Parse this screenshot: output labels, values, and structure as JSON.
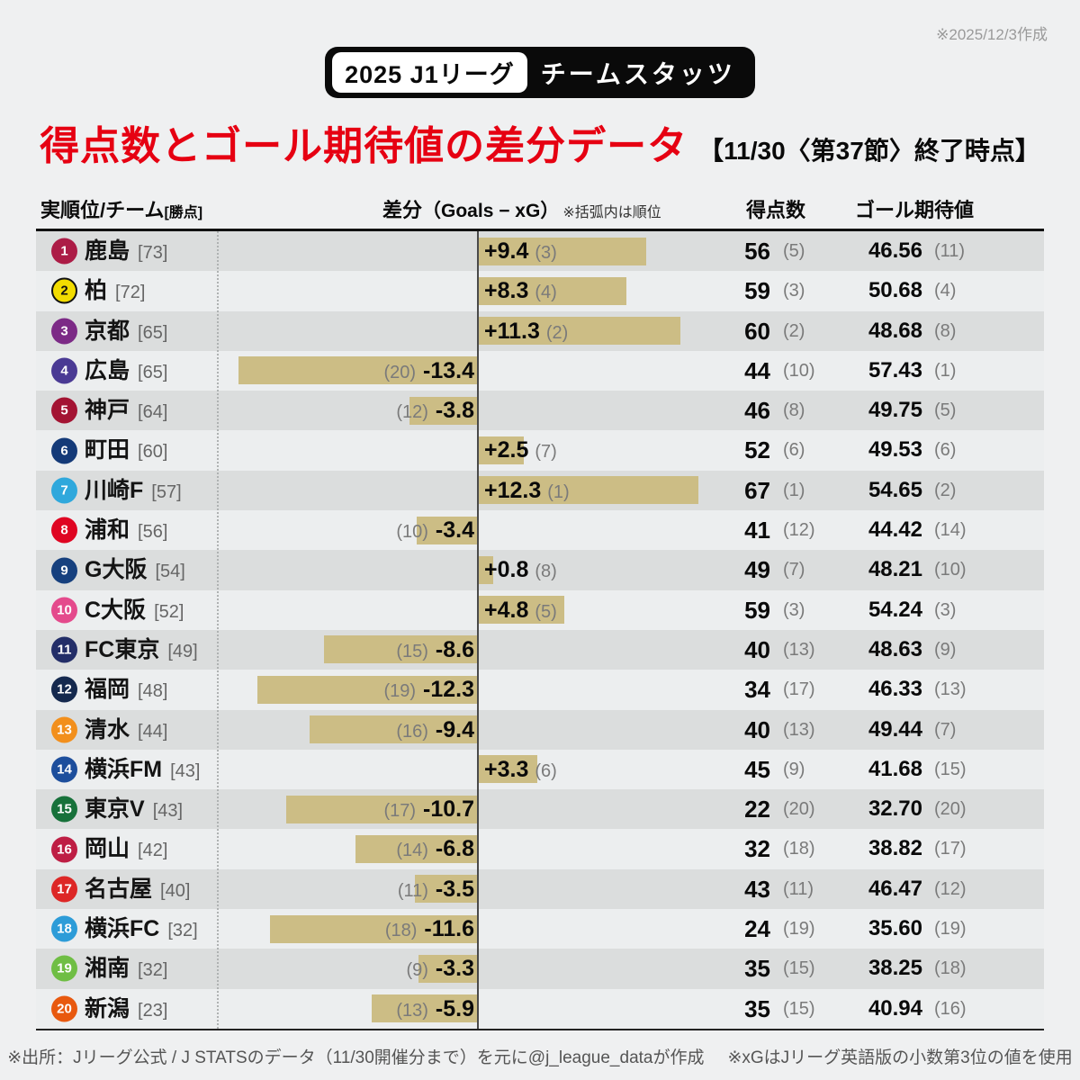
{
  "meta": {
    "created_note": "※2025/12/3作成"
  },
  "banner": {
    "league": "2025 J1リーグ",
    "label": "チームスタッツ"
  },
  "title": {
    "main": "得点数とゴール期待値の差分データ",
    "sub": "【11/30〈第37節〉終了時点】"
  },
  "table_headers": {
    "team": "実順位/チーム",
    "team_sub": "[勝点]",
    "diff": "差分",
    "diff_formula": "（Goals − xG）",
    "diff_note": "※括弧内は順位",
    "goals": "得点数",
    "xg": "ゴール期待値"
  },
  "footer": {
    "source": "※出所：Jリーグ公式 / J STATSのデータ（11/30開催分まで）を元に@j_league_dataが作成",
    "xg_note": "※xGはJリーグ英語版の小数第3位の値を使用"
  },
  "chart_data": {
    "type": "bar",
    "orientation": "horizontal",
    "title": "得点数とゴール期待値の差分データ（2025 J1リーグ チームスタッツ）",
    "value_axis": "差分（Goals − xG）",
    "value_range_approx": [
      -13.4,
      12.3
    ],
    "bar_color": "#CCBD85",
    "note": "括弧内は順位",
    "teams": [
      {
        "rank": 1,
        "name": "鹿島",
        "points": 73,
        "points_label": "[73]",
        "badge_color": "#AC1C46",
        "badge_text_color": "#FFFFFF",
        "diff": 9.4,
        "diff_label": "+9.4",
        "diff_rank": 3,
        "diff_rank_label": "(3)",
        "goals": 56,
        "goals_rank": 5,
        "goals_rank_label": "(5)",
        "xg": "46.56",
        "xg_rank": 11,
        "xg_rank_label": "(11)"
      },
      {
        "rank": 2,
        "name": "柏",
        "points": 72,
        "points_label": "[72]",
        "badge_color": "#F2DC00",
        "badge_text_color": "#111111",
        "badge_border": "#111111",
        "diff": 8.3,
        "diff_label": "+8.3",
        "diff_rank": 4,
        "diff_rank_label": "(4)",
        "goals": 59,
        "goals_rank": 3,
        "goals_rank_label": "(3)",
        "xg": "50.68",
        "xg_rank": 4,
        "xg_rank_label": "(4)"
      },
      {
        "rank": 3,
        "name": "京都",
        "points": 65,
        "points_label": "[65]",
        "badge_color": "#7C2A86",
        "badge_text_color": "#FFFFFF",
        "diff": 11.3,
        "diff_label": "+11.3",
        "diff_rank": 2,
        "diff_rank_label": "(2)",
        "goals": 60,
        "goals_rank": 2,
        "goals_rank_label": "(2)",
        "xg": "48.68",
        "xg_rank": 8,
        "xg_rank_label": "(8)"
      },
      {
        "rank": 4,
        "name": "広島",
        "points": 65,
        "points_label": "[65]",
        "badge_color": "#4A3A94",
        "badge_text_color": "#FFFFFF",
        "diff": -13.4,
        "diff_label": "-13.4",
        "diff_rank": 20,
        "diff_rank_label": "(20)",
        "goals": 44,
        "goals_rank": 10,
        "goals_rank_label": "(10)",
        "xg": "57.43",
        "xg_rank": 1,
        "xg_rank_label": "(1)"
      },
      {
        "rank": 5,
        "name": "神戸",
        "points": 64,
        "points_label": "[64]",
        "badge_color": "#A31332",
        "badge_text_color": "#FFFFFF",
        "diff": -3.8,
        "diff_label": "-3.8",
        "diff_rank": 12,
        "diff_rank_label": "(12)",
        "goals": 46,
        "goals_rank": 8,
        "goals_rank_label": "(8)",
        "xg": "49.75",
        "xg_rank": 5,
        "xg_rank_label": "(5)"
      },
      {
        "rank": 6,
        "name": "町田",
        "points": 60,
        "points_label": "[60]",
        "badge_color": "#143A78",
        "badge_text_color": "#FFFFFF",
        "diff": 2.5,
        "diff_label": "+2.5",
        "diff_rank": 7,
        "diff_rank_label": "(7)",
        "goals": 52,
        "goals_rank": 6,
        "goals_rank_label": "(6)",
        "xg": "49.53",
        "xg_rank": 6,
        "xg_rank_label": "(6)"
      },
      {
        "rank": 7,
        "name": "川崎F",
        "points": 57,
        "points_label": "[57]",
        "badge_color": "#2FA8DC",
        "badge_text_color": "#FFFFFF",
        "diff": 12.3,
        "diff_label": "+12.3",
        "diff_rank": 1,
        "diff_rank_label": "(1)",
        "goals": 67,
        "goals_rank": 1,
        "goals_rank_label": "(1)",
        "xg": "54.65",
        "xg_rank": 2,
        "xg_rank_label": "(2)"
      },
      {
        "rank": 8,
        "name": "浦和",
        "points": 56,
        "points_label": "[56]",
        "badge_color": "#DF0522",
        "badge_text_color": "#FFFFFF",
        "diff": -3.4,
        "diff_label": "-3.4",
        "diff_rank": 10,
        "diff_rank_label": "(10)",
        "goals": 41,
        "goals_rank": 12,
        "goals_rank_label": "(12)",
        "xg": "44.42",
        "xg_rank": 14,
        "xg_rank_label": "(14)"
      },
      {
        "rank": 9,
        "name": "G大阪",
        "points": 54,
        "points_label": "[54]",
        "badge_color": "#16407E",
        "badge_text_color": "#FFFFFF",
        "diff": 0.8,
        "diff_label": "+0.8",
        "diff_rank": 8,
        "diff_rank_label": "(8)",
        "goals": 49,
        "goals_rank": 7,
        "goals_rank_label": "(7)",
        "xg": "48.21",
        "xg_rank": 10,
        "xg_rank_label": "(10)"
      },
      {
        "rank": 10,
        "name": "C大阪",
        "points": 52,
        "points_label": "[52]",
        "badge_color": "#E44A8C",
        "badge_text_color": "#FFFFFF",
        "diff": 4.8,
        "diff_label": "+4.8",
        "diff_rank": 5,
        "diff_rank_label": "(5)",
        "goals": 59,
        "goals_rank": 3,
        "goals_rank_label": "(3)",
        "xg": "54.24",
        "xg_rank": 3,
        "xg_rank_label": "(3)"
      },
      {
        "rank": 11,
        "name": "FC東京",
        "points": 49,
        "points_label": "[49]",
        "badge_color": "#232E68",
        "badge_text_color": "#FFFFFF",
        "diff": -8.6,
        "diff_label": "-8.6",
        "diff_rank": 15,
        "diff_rank_label": "(15)",
        "goals": 40,
        "goals_rank": 13,
        "goals_rank_label": "(13)",
        "xg": "48.63",
        "xg_rank": 9,
        "xg_rank_label": "(9)"
      },
      {
        "rank": 12,
        "name": "福岡",
        "points": 48,
        "points_label": "[48]",
        "badge_color": "#15294E",
        "badge_text_color": "#FFFFFF",
        "diff": -12.3,
        "diff_label": "-12.3",
        "diff_rank": 19,
        "diff_rank_label": "(19)",
        "goals": 34,
        "goals_rank": 17,
        "goals_rank_label": "(17)",
        "xg": "46.33",
        "xg_rank": 13,
        "xg_rank_label": "(13)"
      },
      {
        "rank": 13,
        "name": "清水",
        "points": 44,
        "points_label": "[44]",
        "badge_color": "#F28F1C",
        "badge_text_color": "#FFFFFF",
        "diff": -9.4,
        "diff_label": "-9.4",
        "diff_rank": 16,
        "diff_rank_label": "(16)",
        "goals": 40,
        "goals_rank": 13,
        "goals_rank_label": "(13)",
        "xg": "49.44",
        "xg_rank": 7,
        "xg_rank_label": "(7)"
      },
      {
        "rank": 14,
        "name": "横浜FM",
        "points": 43,
        "points_label": "[43]",
        "badge_color": "#1D4E9C",
        "badge_text_color": "#FFFFFF",
        "diff": 3.3,
        "diff_label": "+3.3",
        "diff_rank": 6,
        "diff_rank_label": "(6)",
        "goals": 45,
        "goals_rank": 9,
        "goals_rank_label": "(9)",
        "xg": "41.68",
        "xg_rank": 15,
        "xg_rank_label": "(15)"
      },
      {
        "rank": 15,
        "name": "東京V",
        "points": 43,
        "points_label": "[43]",
        "badge_color": "#17713A",
        "badge_text_color": "#FFFFFF",
        "diff": -10.7,
        "diff_label": "-10.7",
        "diff_rank": 17,
        "diff_rank_label": "(17)",
        "goals": 22,
        "goals_rank": 20,
        "goals_rank_label": "(20)",
        "xg": "32.70",
        "xg_rank": 20,
        "xg_rank_label": "(20)"
      },
      {
        "rank": 16,
        "name": "岡山",
        "points": 42,
        "points_label": "[42]",
        "badge_color": "#BE1E44",
        "badge_text_color": "#FFFFFF",
        "diff": -6.8,
        "diff_label": "-6.8",
        "diff_rank": 14,
        "diff_rank_label": "(14)",
        "goals": 32,
        "goals_rank": 18,
        "goals_rank_label": "(18)",
        "xg": "38.82",
        "xg_rank": 17,
        "xg_rank_label": "(17)"
      },
      {
        "rank": 17,
        "name": "名古屋",
        "points": 40,
        "points_label": "[40]",
        "badge_color": "#DD2726",
        "badge_text_color": "#FFFFFF",
        "diff": -3.5,
        "diff_label": "-3.5",
        "diff_rank": 11,
        "diff_rank_label": "(11)",
        "goals": 43,
        "goals_rank": 11,
        "goals_rank_label": "(11)",
        "xg": "46.47",
        "xg_rank": 12,
        "xg_rank_label": "(12)"
      },
      {
        "rank": 18,
        "name": "横浜FC",
        "points": 32,
        "points_label": "[32]",
        "badge_color": "#2D9CD8",
        "badge_text_color": "#FFFFFF",
        "diff": -11.6,
        "diff_label": "-11.6",
        "diff_rank": 18,
        "diff_rank_label": "(18)",
        "goals": 24,
        "goals_rank": 19,
        "goals_rank_label": "(19)",
        "xg": "35.60",
        "xg_rank": 19,
        "xg_rank_label": "(19)"
      },
      {
        "rank": 19,
        "name": "湘南",
        "points": 32,
        "points_label": "[32]",
        "badge_color": "#6FBE44",
        "badge_text_color": "#FFFFFF",
        "diff": -3.3,
        "diff_label": "-3.3",
        "diff_rank": 9,
        "diff_rank_label": "(9)",
        "goals": 35,
        "goals_rank": 15,
        "goals_rank_label": "(15)",
        "xg": "38.25",
        "xg_rank": 18,
        "xg_rank_label": "(18)"
      },
      {
        "rank": 20,
        "name": "新潟",
        "points": 23,
        "points_label": "[23]",
        "badge_color": "#E8590F",
        "badge_text_color": "#FFFFFF",
        "diff": -5.9,
        "diff_label": "-5.9",
        "diff_rank": 13,
        "diff_rank_label": "(13)",
        "goals": 35,
        "goals_rank": 15,
        "goals_rank_label": "(15)",
        "xg": "40.94",
        "xg_rank": 16,
        "xg_rank_label": "(16)"
      }
    ]
  }
}
